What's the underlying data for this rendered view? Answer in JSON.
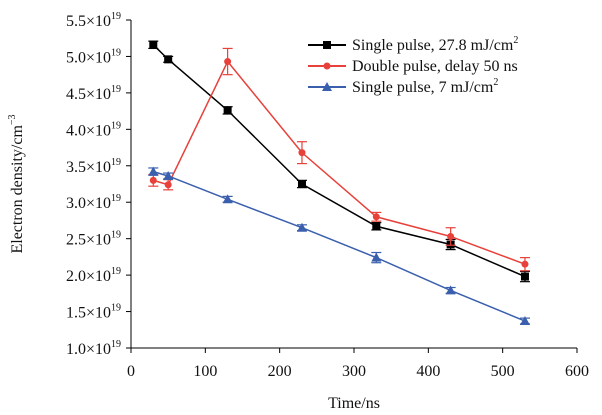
{
  "chart_data": {
    "type": "line",
    "title": "",
    "xlabel": "Time/ns",
    "ylabel": "Electron density/cm",
    "ylabel_exponent": "−3",
    "xlim": [
      0,
      600
    ],
    "ylim": [
      1.0,
      5.5
    ],
    "y_scale_exponent": "19",
    "x_ticks": [
      "0",
      "100",
      "200",
      "300",
      "400",
      "500",
      "600"
    ],
    "y_ticks": [
      "1.0",
      "1.5",
      "2.0",
      "2.5",
      "3.0",
      "3.5",
      "4.0",
      "4.5",
      "5.0",
      "5.5"
    ],
    "y_tick_suffix": "×10",
    "grid": false,
    "legend_position": "top-right",
    "series": [
      {
        "name": "Single pulse, 27.8 mJ/cm",
        "name_sup": "2",
        "color": "#000000",
        "marker": "square",
        "x": [
          30,
          50,
          130,
          230,
          330,
          430,
          530
        ],
        "y": [
          5.16,
          4.96,
          4.26,
          3.25,
          2.67,
          2.42,
          1.98
        ],
        "err": [
          0.05,
          0.04,
          0.05,
          0.05,
          0.05,
          0.07,
          0.07
        ]
      },
      {
        "name": "Double pulse, delay 50 ns",
        "name_sup": "",
        "color": "#e8403a",
        "marker": "circle",
        "x": [
          30,
          50,
          130,
          230,
          330,
          430,
          530
        ],
        "y": [
          3.3,
          3.24,
          4.93,
          3.68,
          2.8,
          2.53,
          2.15
        ],
        "err": [
          0.08,
          0.07,
          0.18,
          0.15,
          0.06,
          0.12,
          0.09
        ]
      },
      {
        "name": "Single pulse, 7 mJ/cm",
        "name_sup": "2",
        "color": "#3a5fad",
        "marker": "triangle",
        "x": [
          30,
          50,
          130,
          230,
          330,
          430,
          530
        ],
        "y": [
          3.42,
          3.36,
          3.04,
          2.65,
          2.24,
          1.79,
          1.37
        ],
        "err": [
          0.05,
          0.04,
          0.04,
          0.04,
          0.07,
          0.04,
          0.04
        ]
      }
    ]
  }
}
